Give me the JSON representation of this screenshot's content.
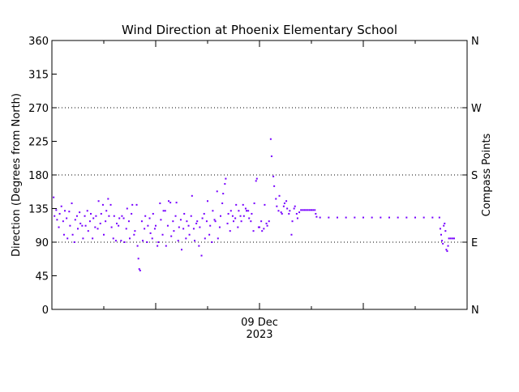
{
  "chart_data": {
    "type": "scatter",
    "title": "Wind Direction at Phoenix Elementary School",
    "ylabel": "Direction (Degrees from North)",
    "y2label": "Compass Points",
    "ylim": [
      0,
      360
    ],
    "y_ticks": [
      0,
      45,
      90,
      135,
      180,
      225,
      270,
      315,
      360
    ],
    "compass_ticks": [
      {
        "value": 0,
        "label": "N"
      },
      {
        "value": 90,
        "label": "E"
      },
      {
        "value": 180,
        "label": "S"
      },
      {
        "value": 270,
        "label": "W"
      },
      {
        "value": 360,
        "label": "N"
      }
    ],
    "gridlines_y": [
      90,
      180,
      270
    ],
    "x_axis": {
      "range_hours": [
        0,
        48
      ],
      "major_tick_hours": [
        12,
        24,
        36
      ],
      "minor_tick_hours": [
        6,
        18,
        30,
        42
      ],
      "date_label_hour": 24,
      "date_label": "09 Dec",
      "year_label": "2023"
    },
    "color": "#7700ff",
    "series": [
      {
        "points": [
          [
            0.2,
            150
          ],
          [
            0.3,
            125
          ],
          [
            0.5,
            133
          ],
          [
            0.6,
            120
          ],
          [
            0.8,
            110
          ],
          [
            0.9,
            128
          ],
          [
            1.1,
            138
          ],
          [
            1.3,
            118
          ],
          [
            1.4,
            100
          ],
          [
            1.5,
            132
          ],
          [
            1.7,
            122
          ],
          [
            1.8,
            95
          ],
          [
            2.0,
            131
          ],
          [
            2.1,
            112
          ],
          [
            2.3,
            142
          ],
          [
            2.4,
            100
          ],
          [
            2.6,
            90
          ],
          [
            2.7,
            120
          ],
          [
            2.9,
            125
          ],
          [
            3.0,
            108
          ],
          [
            3.2,
            130
          ],
          [
            3.3,
            115
          ],
          [
            3.5,
            112
          ],
          [
            3.6,
            95
          ],
          [
            3.8,
            125
          ],
          [
            3.9,
            112
          ],
          [
            4.1,
            132
          ],
          [
            4.2,
            105
          ],
          [
            4.4,
            118
          ],
          [
            4.5,
            128
          ],
          [
            4.7,
            95
          ],
          [
            4.8,
            122
          ],
          [
            5.0,
            110
          ],
          [
            5.1,
            125
          ],
          [
            5.3,
            108
          ],
          [
            5.4,
            145
          ],
          [
            5.6,
            115
          ],
          [
            5.7,
            128
          ],
          [
            5.9,
            140
          ],
          [
            6.0,
            100
          ],
          [
            6.2,
            118
          ],
          [
            6.3,
            132
          ],
          [
            6.5,
            148
          ],
          [
            6.6,
            125
          ],
          [
            6.8,
            140
          ],
          [
            6.9,
            110
          ],
          [
            7.1,
            95
          ],
          [
            7.2,
            125
          ],
          [
            7.4,
            92
          ],
          [
            7.5,
            115
          ],
          [
            7.7,
            112
          ],
          [
            7.8,
            122
          ],
          [
            8.0,
            92
          ],
          [
            8.1,
            125
          ],
          [
            8.3,
            122
          ],
          [
            8.4,
            90
          ],
          [
            8.6,
            108
          ],
          [
            8.7,
            135
          ],
          [
            8.9,
            118
          ],
          [
            9.0,
            95
          ],
          [
            9.2,
            128
          ],
          [
            9.3,
            140
          ],
          [
            9.5,
            100
          ],
          [
            9.6,
            105
          ],
          [
            9.8,
            140
          ],
          [
            9.9,
            85
          ],
          [
            10.0,
            68
          ],
          [
            10.1,
            54
          ],
          [
            10.2,
            52
          ],
          [
            10.4,
            118
          ],
          [
            10.5,
            92
          ],
          [
            10.7,
            108
          ],
          [
            10.8,
            125
          ],
          [
            11.0,
            90
          ],
          [
            11.1,
            112
          ],
          [
            11.3,
            122
          ],
          [
            11.4,
            102
          ],
          [
            11.6,
            95
          ],
          [
            11.7,
            128
          ],
          [
            11.9,
            108
          ],
          [
            12.0,
            112
          ],
          [
            12.2,
            85
          ],
          [
            12.3,
            90
          ],
          [
            12.5,
            142
          ],
          [
            12.6,
            120
          ],
          [
            12.8,
            100
          ],
          [
            12.9,
            132
          ],
          [
            13.1,
            132
          ],
          [
            13.2,
            85
          ],
          [
            13.4,
            112
          ],
          [
            13.5,
            145
          ],
          [
            13.7,
            143
          ],
          [
            13.8,
            98
          ],
          [
            14.0,
            118
          ],
          [
            14.1,
            105
          ],
          [
            14.3,
            125
          ],
          [
            14.4,
            143
          ],
          [
            14.6,
            92
          ],
          [
            14.7,
            110
          ],
          [
            14.9,
            120
          ],
          [
            15.0,
            80
          ],
          [
            15.2,
            108
          ],
          [
            15.3,
            128
          ],
          [
            15.5,
            95
          ],
          [
            15.6,
            118
          ],
          [
            15.8,
            112
          ],
          [
            15.9,
            100
          ],
          [
            16.1,
            125
          ],
          [
            16.2,
            152
          ],
          [
            16.4,
            108
          ],
          [
            16.5,
            92
          ],
          [
            16.7,
            115
          ],
          [
            16.8,
            118
          ],
          [
            17.0,
            85
          ],
          [
            17.1,
            110
          ],
          [
            17.3,
            72
          ],
          [
            17.4,
            122
          ],
          [
            17.6,
            128
          ],
          [
            17.7,
            95
          ],
          [
            17.9,
            118
          ],
          [
            18.0,
            145
          ],
          [
            18.2,
            100
          ],
          [
            18.3,
            112
          ],
          [
            18.5,
            90
          ],
          [
            18.6,
            132
          ],
          [
            18.8,
            120
          ],
          [
            18.9,
            118
          ],
          [
            19.1,
            158
          ],
          [
            19.2,
            95
          ],
          [
            19.4,
            110
          ],
          [
            19.5,
            125
          ],
          [
            19.7,
            142
          ],
          [
            19.8,
            155
          ],
          [
            20.0,
            168
          ],
          [
            20.1,
            175
          ],
          [
            20.3,
            115
          ],
          [
            20.4,
            128
          ],
          [
            20.6,
            105
          ],
          [
            20.7,
            132
          ],
          [
            20.9,
            125
          ],
          [
            21.0,
            118
          ],
          [
            21.2,
            122
          ],
          [
            21.3,
            140
          ],
          [
            21.5,
            110
          ],
          [
            21.6,
            132
          ],
          [
            21.8,
            125
          ],
          [
            21.9,
            118
          ],
          [
            22.1,
            140
          ],
          [
            22.2,
            125
          ],
          [
            22.4,
            135
          ],
          [
            22.5,
            132
          ],
          [
            22.7,
            132
          ],
          [
            22.8,
            122
          ],
          [
            23.0,
            118
          ],
          [
            23.1,
            128
          ],
          [
            23.3,
            105
          ],
          [
            23.4,
            142
          ],
          [
            23.6,
            172
          ],
          [
            23.7,
            175
          ],
          [
            23.9,
            110
          ],
          [
            24.0,
            110
          ],
          [
            24.2,
            118
          ],
          [
            24.3,
            105
          ],
          [
            24.5,
            108
          ],
          [
            24.6,
            140
          ],
          [
            24.8,
            115
          ],
          [
            24.9,
            112
          ],
          [
            25.1,
            118
          ],
          [
            25.3,
            228
          ],
          [
            25.4,
            205
          ],
          [
            25.6,
            178
          ],
          [
            25.7,
            165
          ],
          [
            25.9,
            148
          ],
          [
            26.0,
            138
          ],
          [
            26.2,
            132
          ],
          [
            26.3,
            152
          ],
          [
            26.5,
            130
          ],
          [
            26.6,
            128
          ],
          [
            26.8,
            138
          ],
          [
            26.9,
            142
          ],
          [
            27.1,
            145
          ],
          [
            27.2,
            135
          ],
          [
            27.4,
            128
          ],
          [
            27.5,
            132
          ],
          [
            27.7,
            100
          ],
          [
            27.8,
            118
          ],
          [
            28.0,
            135
          ],
          [
            28.1,
            138
          ],
          [
            28.3,
            128
          ],
          [
            28.4,
            122
          ],
          [
            28.6,
            130
          ],
          [
            28.8,
            133
          ],
          [
            29.0,
            133
          ],
          [
            29.2,
            133
          ],
          [
            29.4,
            133
          ],
          [
            29.6,
            133
          ],
          [
            29.8,
            133
          ],
          [
            30.0,
            133
          ],
          [
            30.2,
            133
          ],
          [
            30.4,
            133
          ],
          [
            30.5,
            128
          ],
          [
            30.6,
            124
          ],
          [
            31.0,
            123
          ],
          [
            32.0,
            123
          ],
          [
            33.0,
            123
          ],
          [
            34.0,
            123
          ],
          [
            35.0,
            123
          ],
          [
            36.0,
            123
          ],
          [
            37.0,
            123
          ],
          [
            38.0,
            123
          ],
          [
            39.0,
            123
          ],
          [
            40.0,
            123
          ],
          [
            41.0,
            123
          ],
          [
            42.0,
            123
          ],
          [
            43.0,
            123
          ],
          [
            44.0,
            123
          ],
          [
            44.8,
            123
          ],
          [
            44.9,
            108
          ],
          [
            45.0,
            100
          ],
          [
            45.1,
            92
          ],
          [
            45.2,
            88
          ],
          [
            45.3,
            112
          ],
          [
            45.4,
            115
          ],
          [
            45.5,
            105
          ],
          [
            45.6,
            80
          ],
          [
            45.7,
            78
          ],
          [
            45.8,
            85
          ],
          [
            45.9,
            95
          ],
          [
            46.1,
            95
          ],
          [
            46.3,
            95
          ],
          [
            46.5,
            95
          ]
        ]
      }
    ]
  }
}
